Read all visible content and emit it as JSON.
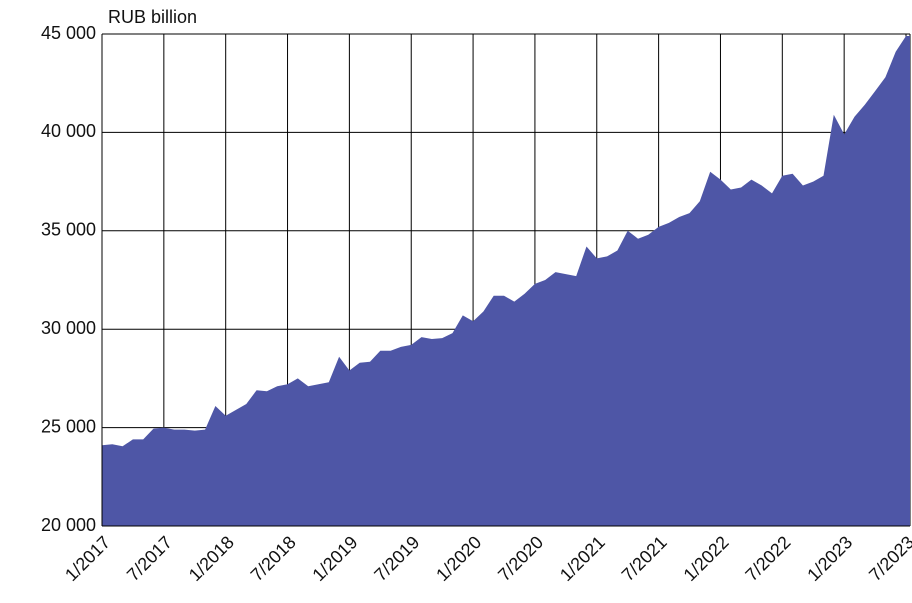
{
  "chart_data": {
    "type": "area",
    "y_label": "RUB billion",
    "color": "#4e56a6",
    "grid": true,
    "categories": [
      "1/2017",
      null,
      null,
      null,
      null,
      null,
      "7/2017",
      null,
      null,
      null,
      null,
      null,
      "1/2018",
      null,
      null,
      null,
      null,
      null,
      "7/2018",
      null,
      null,
      null,
      null,
      null,
      "1/2019",
      null,
      null,
      null,
      null,
      null,
      "7/2019",
      null,
      null,
      null,
      null,
      null,
      "1/2020",
      null,
      null,
      null,
      null,
      null,
      "7/2020",
      null,
      null,
      null,
      null,
      null,
      "1/2021",
      null,
      null,
      null,
      null,
      null,
      "7/2021",
      null,
      null,
      null,
      null,
      null,
      "1/2022",
      null,
      null,
      null,
      null,
      null,
      "7/2022",
      null,
      null,
      null,
      null,
      null,
      "1/2023",
      null,
      null,
      null,
      null,
      null,
      "7/2023"
    ],
    "values": [
      24100,
      24150,
      24050,
      24400,
      24400,
      24950,
      25000,
      24900,
      24900,
      24850,
      24900,
      26100,
      25600,
      25900,
      26200,
      26900,
      26850,
      27100,
      27200,
      27500,
      27100,
      27200,
      27300,
      28600,
      27900,
      28300,
      28350,
      28900,
      28900,
      29100,
      29200,
      29600,
      29500,
      29550,
      29800,
      30700,
      30400,
      30900,
      31700,
      31700,
      31400,
      31800,
      32300,
      32500,
      32900,
      32800,
      32700,
      34200,
      33600,
      33700,
      34000,
      35000,
      34600,
      34800,
      35200,
      35400,
      35700,
      35900,
      36500,
      38000,
      37600,
      37100,
      37200,
      37600,
      37300,
      36900,
      37800,
      37900,
      37300,
      37500,
      37800,
      40900,
      39900,
      40800,
      41400,
      42100,
      42800,
      44100,
      44900
    ],
    "ylim": [
      20000,
      45000
    ],
    "yticks": [
      {
        "value": 20000,
        "label": "20 000"
      },
      {
        "value": 25000,
        "label": "25 000"
      },
      {
        "value": 30000,
        "label": "30 000"
      },
      {
        "value": 35000,
        "label": "35 000"
      },
      {
        "value": 40000,
        "label": "40 000"
      },
      {
        "value": 45000,
        "label": "45 000"
      }
    ]
  }
}
